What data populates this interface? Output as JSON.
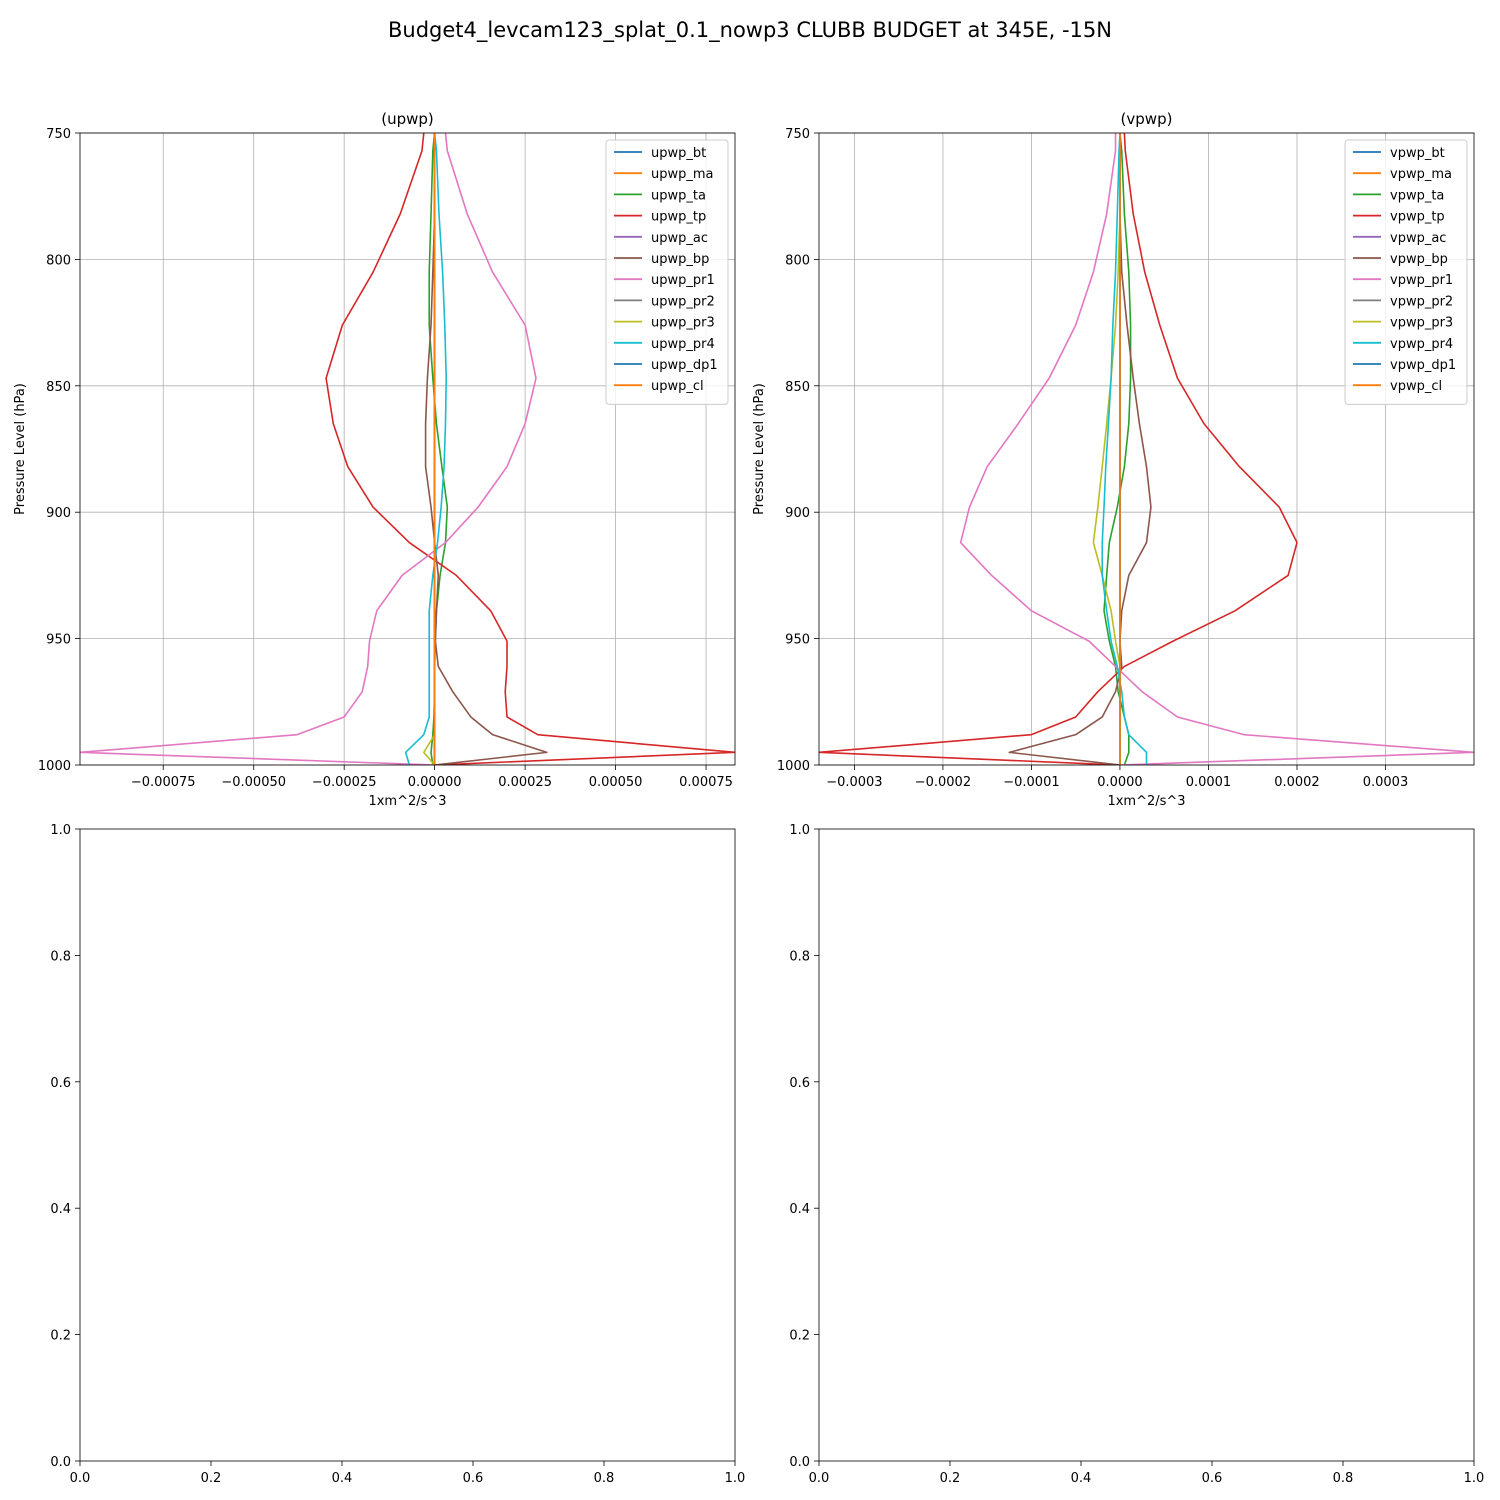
{
  "figure": {
    "title": "Budget4_levcam123_splat_0.1_nowp3 CLUBB BUDGET at 345E, -15N"
  },
  "colors": {
    "bt": "#1f77b4",
    "ma": "#ff7f0e",
    "ta": "#2ca02c",
    "tp": "#d62728",
    "ac": "#9467bd",
    "bp": "#8c564b",
    "pr1": "#e377c2",
    "pr2": "#7f7f7f",
    "pr3": "#bcbd22",
    "pr4": "#17becf",
    "dp1": "#1f77b4",
    "cl": "#ff7f0e"
  },
  "chart_data": [
    {
      "type": "line",
      "title": "(upwp)",
      "xlabel": "1xm^2/s^3",
      "ylabel": "Pressure Level (hPa)",
      "xlim": [
        -0.00098,
        0.00083
      ],
      "ylim": [
        1000,
        750
      ],
      "grid": true,
      "legend": "top-right",
      "xticks": [
        -0.00075,
        -0.0005,
        -0.00025,
        0.0,
        0.00025,
        0.0005,
        0.00075
      ],
      "xticklabels": [
        "−0.00075",
        "−0.00050",
        "−0.00025",
        "0.00000",
        "0.00025",
        "0.00050",
        "0.00075"
      ],
      "yticks": [
        750,
        800,
        850,
        900,
        950,
        1000
      ],
      "yticklabels": [
        "750",
        "800",
        "850",
        "900",
        "950",
        "1000"
      ],
      "levels": [
        750,
        757,
        782,
        805,
        826,
        847,
        865,
        882,
        898,
        912,
        925,
        939,
        951,
        961,
        971,
        981,
        988,
        995,
        1000
      ],
      "series": [
        {
          "name": "upwp_bt",
          "key": "bt",
          "values": [
            0,
            0,
            0,
            0,
            0,
            0,
            0,
            0,
            0,
            0,
            0,
            0,
            0,
            0,
            0,
            0,
            0,
            0,
            0
          ]
        },
        {
          "name": "upwp_ma",
          "key": "ma",
          "values": [
            0,
            0,
            0,
            0,
            0,
            0,
            0,
            0,
            0,
            0,
            0,
            0,
            0,
            0,
            0,
            0,
            0,
            0,
            0
          ]
        },
        {
          "name": "upwp_ta",
          "key": "ta",
          "values": [
            0,
            -5e-06,
            -1e-05,
            -1.5e-05,
            -1.5e-05,
            -5e-06,
            5e-06,
            2e-05,
            3.5e-05,
            3e-05,
            1.5e-05,
            5e-06,
            2e-06,
            0,
            0,
            -2e-06,
            -5e-06,
            -1e-05,
            -5e-06
          ]
        },
        {
          "name": "upwp_tp",
          "key": "tp",
          "values": [
            -3e-05,
            -3.5e-05,
            -9.5e-05,
            -0.00017,
            -0.000255,
            -0.0003,
            -0.00028,
            -0.00024,
            -0.00017,
            -7e-05,
            6e-05,
            0.000155,
            0.0002,
            0.0002,
            0.000195,
            0.0002,
            0.000285,
            0.00083,
            0
          ]
        },
        {
          "name": "upwp_ac",
          "key": "ac",
          "values": [
            0,
            0,
            0,
            0,
            0,
            0,
            0,
            0,
            0,
            0,
            0,
            0,
            0,
            0,
            0,
            0,
            0,
            0,
            0
          ]
        },
        {
          "name": "upwp_bp",
          "key": "bp",
          "values": [
            0,
            0,
            0,
            -5e-06,
            -1e-05,
            -2e-05,
            -2.5e-05,
            -2.5e-05,
            -1e-05,
            0,
            1e-05,
            5e-06,
            2e-06,
            1e-05,
            5e-05,
            0.0001,
            0.00016,
            0.00031,
            0
          ]
        },
        {
          "name": "upwp_pr1",
          "key": "pr1",
          "values": [
            3e-05,
            3.5e-05,
            9e-05,
            0.00016,
            0.00025,
            0.00028,
            0.00025,
            0.0002,
            0.00012,
            3e-05,
            -9e-05,
            -0.00016,
            -0.00018,
            -0.000185,
            -0.0002,
            -0.00025,
            -0.00038,
            -0.00098,
            0
          ]
        },
        {
          "name": "upwp_pr2",
          "key": "pr2",
          "values": [
            0,
            0,
            0,
            0,
            0,
            0,
            0,
            0,
            0,
            0,
            0,
            0,
            0,
            0,
            0,
            0,
            0,
            0,
            0
          ]
        },
        {
          "name": "upwp_pr3",
          "key": "pr3",
          "values": [
            0,
            0,
            0,
            0,
            0,
            0,
            0,
            0,
            0,
            0,
            0,
            0,
            0,
            0,
            0,
            0,
            0,
            -3e-05,
            0
          ]
        },
        {
          "name": "upwp_pr4",
          "key": "pr4",
          "values": [
            0,
            5e-06,
            1.2e-05,
            2.2e-05,
            2.8e-05,
            3.2e-05,
            3e-05,
            2.6e-05,
            1.8e-05,
            8e-06,
            -5e-06,
            -1.5e-05,
            -1.5e-05,
            -1.5e-05,
            -1.5e-05,
            -1.5e-05,
            -3e-05,
            -8e-05,
            -7e-05
          ]
        },
        {
          "name": "upwp_dp1",
          "key": "dp1",
          "values": [
            0,
            0,
            0,
            0,
            0,
            0,
            0,
            0,
            0,
            0,
            0,
            0,
            0,
            0,
            0,
            0,
            0,
            0,
            0
          ]
        },
        {
          "name": "upwp_cl",
          "key": "cl",
          "values": [
            0,
            0,
            0,
            0,
            0,
            0,
            0,
            0,
            0,
            0,
            0,
            0,
            0,
            0,
            0,
            0,
            0,
            0,
            0
          ]
        }
      ]
    },
    {
      "type": "line",
      "title": "(vpwp)",
      "xlabel": "1xm^2/s^3",
      "ylabel": "Pressure Level (hPa)",
      "xlim": [
        -0.00034,
        0.0004
      ],
      "ylim": [
        1000,
        750
      ],
      "grid": true,
      "legend": "top-right",
      "xticks": [
        -0.0003,
        -0.0002,
        -0.0001,
        0.0,
        0.0001,
        0.0002,
        0.0003
      ],
      "xticklabels": [
        "−0.0003",
        "−0.0002",
        "−0.0001",
        "0.0000",
        "0.0001",
        "0.0002",
        "0.0003"
      ],
      "yticks": [
        750,
        800,
        850,
        900,
        950,
        1000
      ],
      "yticklabels": [
        "750",
        "800",
        "850",
        "900",
        "950",
        "1000"
      ],
      "levels": [
        750,
        757,
        782,
        805,
        826,
        847,
        865,
        882,
        898,
        912,
        925,
        939,
        951,
        961,
        971,
        981,
        988,
        995,
        1000
      ],
      "series": [
        {
          "name": "vpwp_bt",
          "key": "bt",
          "values": [
            0,
            0,
            0,
            0,
            0,
            0,
            0,
            0,
            0,
            0,
            0,
            0,
            0,
            0,
            0,
            0,
            0,
            0,
            0
          ]
        },
        {
          "name": "vpwp_ma",
          "key": "ma",
          "values": [
            0,
            0,
            0,
            0,
            0,
            0,
            0,
            0,
            0,
            0,
            0,
            0,
            0,
            0,
            0,
            0,
            0,
            0,
            0
          ]
        },
        {
          "name": "vpwp_ta",
          "key": "ta",
          "values": [
            0,
            2e-06,
            5e-06,
            1e-05,
            1.2e-05,
            1.2e-05,
            1e-05,
            5e-06,
            -3e-06,
            -1.2e-05,
            -1.5e-05,
            -1.8e-05,
            -1.2e-05,
            -5e-06,
            -2e-06,
            5e-06,
            1e-05,
            1e-05,
            5e-06
          ]
        },
        {
          "name": "vpwp_tp",
          "key": "tp",
          "values": [
            5e-06,
            6e-06,
            1.5e-05,
            2.8e-05,
            4.5e-05,
            6.5e-05,
            9.5e-05,
            0.000135,
            0.00018,
            0.0002,
            0.00019,
            0.00013,
            6e-05,
            5e-06,
            -2.5e-05,
            -5e-05,
            -0.0001,
            -0.00034,
            0
          ]
        },
        {
          "name": "vpwp_ac",
          "key": "ac",
          "values": [
            0,
            0,
            0,
            0,
            0,
            0,
            0,
            0,
            0,
            0,
            0,
            0,
            0,
            0,
            0,
            0,
            0,
            0,
            0
          ]
        },
        {
          "name": "vpwp_bp",
          "key": "bp",
          "values": [
            0,
            0,
            0,
            2e-06,
            8e-06,
            1.5e-05,
            2.2e-05,
            3e-05,
            3.5e-05,
            3e-05,
            1e-05,
            2e-06,
            0,
            2e-06,
            -5e-06,
            -2e-05,
            -5e-05,
            -0.000125,
            0
          ]
        },
        {
          "name": "vpwp_pr1",
          "key": "pr1",
          "values": [
            -5e-06,
            -5e-06,
            -1.5e-05,
            -3e-05,
            -5e-05,
            -8e-05,
            -0.000115,
            -0.00015,
            -0.00017,
            -0.00018,
            -0.000145,
            -0.0001,
            -3.5e-05,
            -5e-06,
            2.5e-05,
            6.5e-05,
            0.00014,
            0.0004,
            0
          ]
        },
        {
          "name": "vpwp_pr2",
          "key": "pr2",
          "values": [
            0,
            0,
            0,
            0,
            0,
            0,
            0,
            0,
            0,
            0,
            0,
            0,
            0,
            0,
            0,
            0,
            0,
            0,
            0
          ]
        },
        {
          "name": "vpwp_pr3",
          "key": "pr3",
          "values": [
            0,
            0,
            0,
            -2e-06,
            -5e-06,
            -1e-05,
            -1.5e-05,
            -2e-05,
            -2.5e-05,
            -3e-05,
            -2e-05,
            -1e-05,
            -5e-06,
            0,
            0,
            0,
            0,
            0,
            0
          ]
        },
        {
          "name": "vpwp_pr4",
          "key": "pr4",
          "values": [
            0,
            -1e-06,
            -3e-06,
            -5e-06,
            -8e-06,
            -1e-05,
            -1.3e-05,
            -1.6e-05,
            -1.8e-05,
            -2e-05,
            -2e-05,
            -1.5e-05,
            -1e-05,
            -3e-06,
            2e-06,
            5e-06,
            1e-05,
            3e-05,
            3e-05
          ]
        },
        {
          "name": "vpwp_dp1",
          "key": "dp1",
          "values": [
            0,
            0,
            0,
            0,
            0,
            0,
            0,
            0,
            0,
            0,
            0,
            0,
            0,
            0,
            0,
            0,
            0,
            0,
            0
          ]
        },
        {
          "name": "vpwp_cl",
          "key": "cl",
          "values": [
            0,
            0,
            0,
            0,
            0,
            0,
            0,
            0,
            0,
            0,
            0,
            0,
            0,
            0,
            0,
            0,
            0,
            0,
            0
          ]
        }
      ]
    },
    {
      "type": "line",
      "title": "",
      "xlim": [
        0,
        1
      ],
      "ylim": [
        0,
        1
      ],
      "grid": false,
      "xticklabels": [
        "0.0",
        "0.2",
        "0.4",
        "0.6",
        "0.8",
        "1.0"
      ],
      "yticklabels": [
        "0.0",
        "0.2",
        "0.4",
        "0.6",
        "0.8",
        "1.0"
      ],
      "series": []
    },
    {
      "type": "line",
      "title": "",
      "xlim": [
        0,
        1
      ],
      "ylim": [
        0,
        1
      ],
      "grid": false,
      "xticklabels": [
        "0.0",
        "0.2",
        "0.4",
        "0.6",
        "0.8",
        "1.0"
      ],
      "yticklabels": [
        "0.0",
        "0.2",
        "0.4",
        "0.6",
        "0.8",
        "1.0"
      ],
      "series": []
    }
  ]
}
